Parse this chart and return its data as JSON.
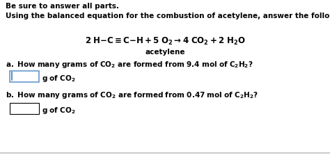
{
  "header": "Be sure to answer all parts.",
  "intro": "Using the balanced equation for the combustion of acetylene, answer the following questions.",
  "equation_parts": [
    {
      "text": "2 H",
      "style": "bold",
      "math": false
    },
    {
      "text": "−",
      "style": "bold",
      "math": false
    },
    {
      "text": "C≡C",
      "style": "bold",
      "math": false
    },
    {
      "text": "−",
      "style": "bold",
      "math": false
    },
    {
      "text": "H + 5 O",
      "style": "bold",
      "math": false
    },
    {
      "text": "2",
      "style": "bold_sub",
      "math": false
    },
    {
      "text": " → 4 CO",
      "style": "bold",
      "math": false
    },
    {
      "text": "2",
      "style": "bold_sub",
      "math": false
    },
    {
      "text": " + 2 H",
      "style": "bold",
      "math": false
    },
    {
      "text": "2",
      "style": "bold_sub",
      "math": false
    },
    {
      "text": "O",
      "style": "bold",
      "math": false
    }
  ],
  "eq_label": "acetylene",
  "question_a_parts": [
    {
      "text": "a. How many grams of CO",
      "bold": true
    },
    {
      "text": "2",
      "bold": true,
      "sub": true
    },
    {
      "text": " are formed from 9.4 mol of C",
      "bold": true
    },
    {
      "text": "2",
      "bold": true,
      "sub": true
    },
    {
      "text": "H",
      "bold": true
    },
    {
      "text": "2",
      "bold": true,
      "sub": true
    },
    {
      "text": "?",
      "bold": true
    }
  ],
  "answer_a_parts": [
    {
      "text": "g of CO",
      "bold": true
    },
    {
      "text": "2",
      "bold": true,
      "sub": true
    }
  ],
  "question_b_parts": [
    {
      "text": "b. How many grams of CO",
      "bold": true
    },
    {
      "text": "2",
      "bold": true,
      "sub": true
    },
    {
      "text": " are formed from 0.47 mol of C",
      "bold": true
    },
    {
      "text": "2",
      "bold": true,
      "sub": true
    },
    {
      "text": "H",
      "bold": true
    },
    {
      "text": "2",
      "bold": true,
      "sub": true
    },
    {
      "text": "?",
      "bold": true
    }
  ],
  "answer_b_parts": [
    {
      "text": "g of CO",
      "bold": true
    },
    {
      "text": "2",
      "bold": true,
      "sub": true
    }
  ],
  "bg_color": "#ffffff",
  "text_color": "#000000",
  "box_border_color": "#000000",
  "box_a_border_color": "#6699cc",
  "cursor_color": "#4477aa",
  "footer_color": "#cccccc",
  "main_fontsize": 7.5,
  "sub_fontsize": 5.5,
  "eq_fontsize": 8.5
}
